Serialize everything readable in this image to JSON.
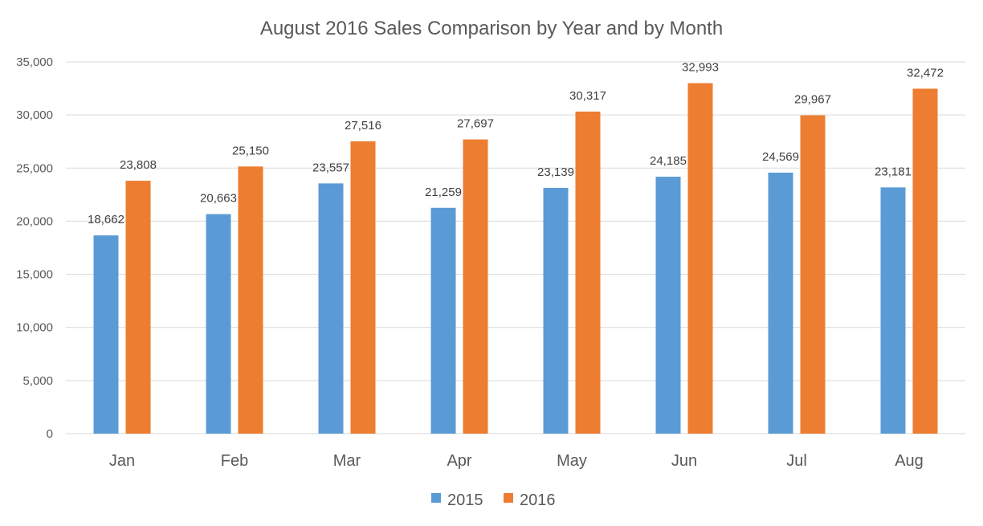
{
  "chart_data": {
    "type": "bar",
    "title": "August 2016 Sales Comparison by Year and by Month",
    "xlabel": "",
    "ylabel": "",
    "categories": [
      "Jan",
      "Feb",
      "Mar",
      "Apr",
      "May",
      "Jun",
      "Jul",
      "Aug"
    ],
    "series": [
      {
        "name": "2015",
        "color": "#5B9BD5",
        "values": [
          18662,
          20663,
          23557,
          21259,
          23139,
          24185,
          24569,
          23181
        ],
        "labels": [
          "18,662",
          "20,663",
          "23,557",
          "21,259",
          "23,139",
          "24,185",
          "24,569",
          "23,181"
        ]
      },
      {
        "name": "2016",
        "color": "#ED7D31",
        "values": [
          23808,
          25150,
          27516,
          27697,
          30317,
          32993,
          29967,
          32472
        ],
        "labels": [
          "23,808",
          "25,150",
          "27,516",
          "27,697",
          "30,317",
          "32,993",
          "29,967",
          "32,472"
        ]
      }
    ],
    "ylim": [
      0,
      35000
    ],
    "yticks": [
      0,
      5000,
      10000,
      15000,
      20000,
      25000,
      30000,
      35000
    ],
    "ytick_labels": [
      "0",
      "5,000",
      "10,000",
      "15,000",
      "20,000",
      "25,000",
      "30,000",
      "35,000"
    ],
    "grid": true,
    "legend_position": "bottom",
    "gridline_color": "#D9D9D9"
  }
}
